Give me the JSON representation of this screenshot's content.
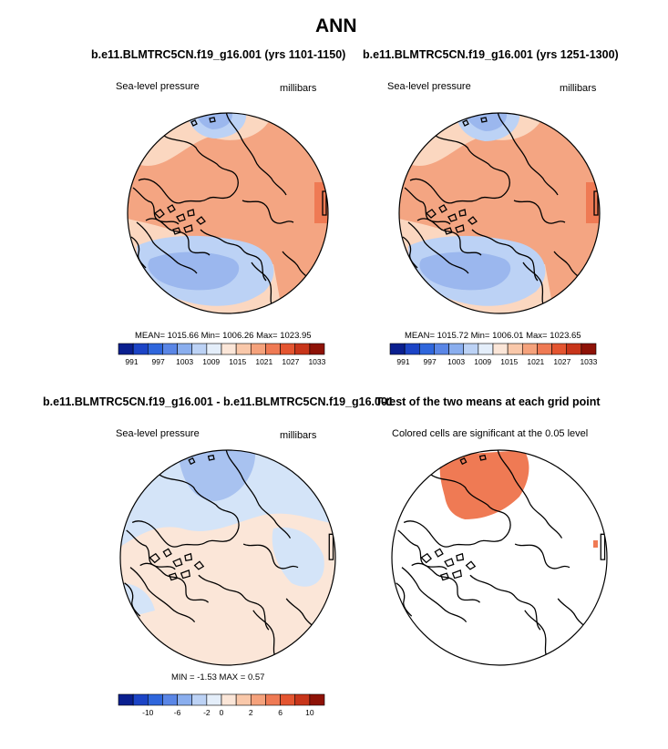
{
  "figure": {
    "title": "ANN",
    "top_left": {
      "title": "b.e11.BLMTRC5CN.f19_g16.001 (yrs 1101-1150)",
      "label_left": "Sea-level pressure",
      "label_right": "millibars",
      "stats": "MEAN= 1015.66  Min= 1006.26  Max= 1023.95"
    },
    "top_right": {
      "title": "b.e11.BLMTRC5CN.f19_g16.001 (yrs 1251-1300)",
      "label_left": "Sea-level pressure",
      "label_right": "millibars",
      "stats": "MEAN= 1015.72  Min= 1006.01  Max= 1023.65"
    },
    "bottom_left": {
      "title": "b.e11.BLMTRC5CN.f19_g16.001 - b.e11.BLMTRC5CN.f19_g16.001",
      "label_left": "Sea-level pressure",
      "label_right": "millibars",
      "stats": "MIN =  -1.53 MAX =   0.57"
    },
    "bottom_right": {
      "title": "T-test of the two means at each grid point",
      "label_left": "Colored cells are significant at the 0.05 level"
    }
  },
  "colorbars": {
    "abs": {
      "colors": [
        "#0a1f8f",
        "#1c44c6",
        "#2f66dc",
        "#5a86e6",
        "#8aaeee",
        "#bcd2f5",
        "#e4eefa",
        "#fbe6d8",
        "#f9c8aa",
        "#f5a27c",
        "#ef7a54",
        "#e45530",
        "#c8351a",
        "#8e1207"
      ],
      "ticks": [
        "991",
        "997",
        "1003",
        "1009",
        "1015",
        "1021",
        "1027",
        "1033"
      ]
    },
    "diff": {
      "colors": [
        "#0a1f8f",
        "#1c44c6",
        "#2f66dc",
        "#5a86e6",
        "#8aaeee",
        "#bcd2f5",
        "#e4eefa",
        "#fbe6d8",
        "#f9c8aa",
        "#f5a27c",
        "#ef7a54",
        "#e45530",
        "#c8351a",
        "#8e1207"
      ],
      "ticks": [
        "-10",
        "-6",
        "-2",
        "0",
        "2",
        "6",
        "10"
      ]
    }
  },
  "map_colors": {
    "high": "#f4a582",
    "mid": "#fbd7c0",
    "light_high": "#fde3d1",
    "low": "#bcd2f5",
    "lower": "#9bb7ee",
    "lowest": "#7f9fe6",
    "diff_pos": "#fbe6d8",
    "diff_neg": "#d4e4f8",
    "diff_neg2": "#a8c2f0",
    "sig": "#ef7a54",
    "coast": "#000000"
  }
}
